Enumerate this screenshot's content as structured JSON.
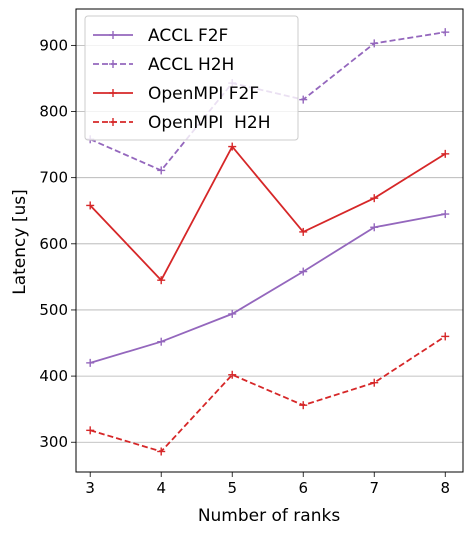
{
  "chart_data": {
    "type": "line",
    "title": "",
    "xlabel": "Number of ranks",
    "ylabel": "Latency [us]",
    "x": [
      3,
      4,
      5,
      6,
      7,
      8
    ],
    "xlim": [
      2.8,
      8.25
    ],
    "ylim": [
      255,
      955
    ],
    "yticks": [
      300,
      400,
      500,
      600,
      700,
      800,
      900
    ],
    "grid": "horizontal",
    "legend_position": "top-left",
    "series": [
      {
        "name": "ACCL F2F",
        "values": [
          420,
          452,
          494,
          558,
          625,
          645
        ],
        "color": "#9467bd",
        "dashed": false
      },
      {
        "name": "ACCL H2H",
        "values": [
          758,
          711,
          843,
          818,
          903,
          920
        ],
        "color": "#9467bd",
        "dashed": true
      },
      {
        "name": "OpenMPI F2F",
        "values": [
          658,
          545,
          747,
          618,
          669,
          736
        ],
        "color": "#d62728",
        "dashed": false
      },
      {
        "name": "OpenMPI  H2H",
        "values": [
          318,
          286,
          402,
          356,
          390,
          460
        ],
        "color": "#d62728",
        "dashed": true
      }
    ]
  }
}
